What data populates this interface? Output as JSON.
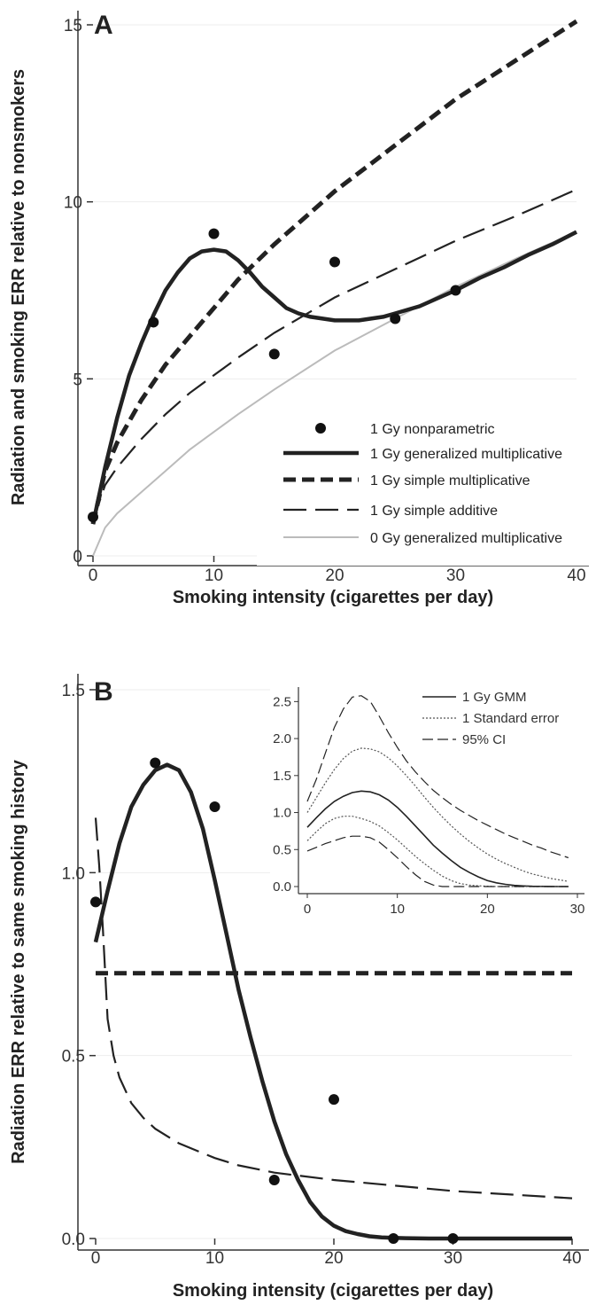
{
  "chart_data": [
    {
      "panel_label": "A",
      "type": "line",
      "xlabel": "Smoking intensity (cigarettes per day)",
      "ylabel": "Radiation and smoking ERR relative to nonsmokers",
      "xlim": [
        0,
        40
      ],
      "ylim": [
        0,
        15
      ],
      "xticks": [
        0,
        10,
        20,
        30,
        40
      ],
      "yticks": [
        0,
        5,
        10,
        15
      ],
      "grid": "horizontal",
      "legend_position": "bottom-right",
      "series": [
        {
          "name": "1 Gy nonparametric",
          "style": "points",
          "x": [
            0,
            5,
            10,
            15,
            20,
            25,
            30
          ],
          "y": [
            1.1,
            6.6,
            9.1,
            5.7,
            8.3,
            6.7,
            7.5
          ]
        },
        {
          "name": "1 Gy generalized multiplicative",
          "style": "solid-thick",
          "x": [
            0,
            1,
            2,
            3,
            4,
            5,
            6,
            7,
            8,
            9,
            10,
            11,
            12,
            13,
            14,
            15,
            16,
            17,
            18,
            19,
            20,
            21,
            22,
            23,
            24,
            25,
            26,
            27,
            28,
            29,
            30,
            32,
            34,
            36,
            38,
            40
          ],
          "y": [
            0.9,
            2.5,
            3.9,
            5.1,
            6.0,
            6.8,
            7.5,
            8.0,
            8.4,
            8.6,
            8.65,
            8.6,
            8.35,
            8.0,
            7.6,
            7.3,
            7.0,
            6.85,
            6.75,
            6.7,
            6.65,
            6.65,
            6.65,
            6.7,
            6.75,
            6.85,
            6.95,
            7.05,
            7.2,
            7.35,
            7.5,
            7.85,
            8.15,
            8.5,
            8.8,
            9.15
          ]
        },
        {
          "name": "1 Gy simple multiplicative",
          "style": "dashed-thick",
          "x": [
            0,
            1,
            2,
            4,
            6,
            8,
            10,
            12,
            15,
            20,
            25,
            30,
            35,
            40
          ],
          "y": [
            0.9,
            2.4,
            3.2,
            4.4,
            5.4,
            6.2,
            7.0,
            7.8,
            8.8,
            10.3,
            11.6,
            12.9,
            14.0,
            15.1
          ]
        },
        {
          "name": "1 Gy simple additive",
          "style": "long-dash",
          "x": [
            0,
            1,
            2,
            4,
            6,
            8,
            10,
            12,
            15,
            20,
            25,
            30,
            35,
            40
          ],
          "y": [
            1.0,
            2.0,
            2.5,
            3.3,
            4.0,
            4.6,
            5.1,
            5.6,
            6.3,
            7.3,
            8.1,
            8.9,
            9.6,
            10.35
          ]
        },
        {
          "name": "0 Gy generalized multiplicative",
          "style": "solid-thin-gray",
          "x": [
            0,
            1,
            2,
            4,
            6,
            8,
            10,
            12,
            15,
            20,
            25,
            30,
            35,
            40
          ],
          "y": [
            0,
            0.8,
            1.2,
            1.8,
            2.4,
            3.0,
            3.5,
            4.0,
            4.7,
            5.8,
            6.7,
            7.6,
            8.4,
            9.15
          ]
        }
      ]
    },
    {
      "panel_label": "B",
      "type": "line",
      "xlabel": "Smoking intensity (cigarettes per day)",
      "ylabel": "Radiation ERR relative to same smoking history",
      "xlim": [
        0,
        40
      ],
      "ylim": [
        0,
        1.5
      ],
      "xticks": [
        0,
        10,
        20,
        30,
        40
      ],
      "yticks": [
        "0.0",
        "0.5",
        "1.0",
        "1.5"
      ],
      "grid": "horizontal",
      "series": [
        {
          "name": "1 Gy nonparametric",
          "style": "points",
          "x": [
            0,
            5,
            10,
            15,
            20,
            25,
            30
          ],
          "y": [
            0.92,
            1.3,
            1.18,
            0.16,
            0.38,
            0.0,
            0.0
          ]
        },
        {
          "name": "1 Gy generalized multiplicative",
          "style": "solid-thick",
          "x": [
            0,
            1,
            2,
            3,
            4,
            5,
            6,
            7,
            8,
            9,
            10,
            11,
            12,
            13,
            14,
            15,
            16,
            17,
            18,
            19,
            20,
            21,
            22,
            23,
            24,
            25,
            26,
            28,
            30,
            35,
            40
          ],
          "y": [
            0.81,
            0.95,
            1.08,
            1.18,
            1.24,
            1.28,
            1.295,
            1.28,
            1.22,
            1.12,
            0.98,
            0.83,
            0.68,
            0.55,
            0.43,
            0.32,
            0.23,
            0.16,
            0.1,
            0.06,
            0.035,
            0.02,
            0.012,
            0.006,
            0.003,
            0.002,
            0.001,
            0.0,
            0.0,
            0.0,
            0.0
          ]
        },
        {
          "name": "1 Gy simple multiplicative",
          "style": "dashed-thick",
          "x": [
            0,
            40
          ],
          "y": [
            0.725,
            0.725
          ]
        },
        {
          "name": "1 Gy simple additive",
          "style": "long-dash",
          "x": [
            0,
            0.3,
            0.6,
            1,
            1.5,
            2,
            3,
            4,
            5,
            7,
            10,
            12,
            15,
            20,
            25,
            30,
            35,
            40
          ],
          "y": [
            1.15,
            1.02,
            0.85,
            0.6,
            0.5,
            0.44,
            0.37,
            0.33,
            0.3,
            0.26,
            0.22,
            0.2,
            0.18,
            0.16,
            0.145,
            0.13,
            0.12,
            0.11
          ]
        }
      ],
      "inset": {
        "type": "line",
        "xlim": [
          0,
          30
        ],
        "ylim": [
          0,
          2.6
        ],
        "xticks": [
          0,
          10,
          20,
          30
        ],
        "yticks": [
          "0.0",
          "0.5",
          "1.0",
          "1.5",
          "2.0",
          "2.5"
        ],
        "legend_position": "top-right",
        "x": [
          0,
          1,
          2,
          3,
          4,
          5,
          6,
          7,
          8,
          9,
          10,
          11,
          12,
          13,
          14,
          15,
          16,
          17,
          18,
          19,
          20,
          21,
          22,
          23,
          24,
          25,
          26,
          27,
          28,
          29
        ],
        "series": [
          {
            "name": "1 Gy GMM",
            "style": "solid",
            "y": [
              0.8,
              0.93,
              1.05,
              1.15,
              1.22,
              1.27,
              1.29,
              1.28,
              1.24,
              1.17,
              1.07,
              0.95,
              0.82,
              0.69,
              0.56,
              0.45,
              0.35,
              0.26,
              0.19,
              0.13,
              0.08,
              0.05,
              0.03,
              0.015,
              0.008,
              0.004,
              0.002,
              0.001,
              0.0,
              0.0
            ]
          },
          {
            "name": "1 Standard error",
            "style": "dotted",
            "y": [
              0.62,
              0.74,
              0.85,
              0.92,
              0.95,
              0.95,
              0.92,
              0.88,
              0.82,
              0.73,
              0.63,
              0.52,
              0.41,
              0.31,
              0.22,
              0.14,
              0.08,
              0.04,
              0.02,
              0.01,
              0.005,
              0.0,
              0.0,
              0.0,
              0.0,
              0.0,
              0.0,
              0.0,
              0.0,
              0.0
            ]
          },
          {
            "name": "",
            "style": "dotted",
            "y": [
              1.0,
              1.2,
              1.4,
              1.58,
              1.73,
              1.83,
              1.87,
              1.86,
              1.82,
              1.74,
              1.63,
              1.5,
              1.36,
              1.21,
              1.07,
              0.94,
              0.82,
              0.71,
              0.61,
              0.52,
              0.44,
              0.37,
              0.31,
              0.26,
              0.21,
              0.17,
              0.14,
              0.11,
              0.09,
              0.07
            ]
          },
          {
            "name": "95% CI",
            "style": "dashed",
            "y": [
              0.48,
              0.53,
              0.58,
              0.62,
              0.66,
              0.68,
              0.68,
              0.66,
              0.6,
              0.5,
              0.39,
              0.27,
              0.16,
              0.07,
              0.02,
              0.0,
              0.0,
              0.0,
              0.0,
              0.0,
              0.0,
              0.0,
              0.0,
              0.0,
              0.0,
              0.0,
              0.0,
              0.0,
              0.0,
              0.0
            ]
          },
          {
            "name": "",
            "style": "dashed",
            "y": [
              1.15,
              1.45,
              1.8,
              2.15,
              2.4,
              2.56,
              2.58,
              2.5,
              2.3,
              2.08,
              1.88,
              1.7,
              1.55,
              1.42,
              1.3,
              1.2,
              1.11,
              1.03,
              0.96,
              0.89,
              0.83,
              0.77,
              0.71,
              0.66,
              0.61,
              0.56,
              0.52,
              0.47,
              0.43,
              0.39
            ]
          }
        ]
      }
    }
  ]
}
